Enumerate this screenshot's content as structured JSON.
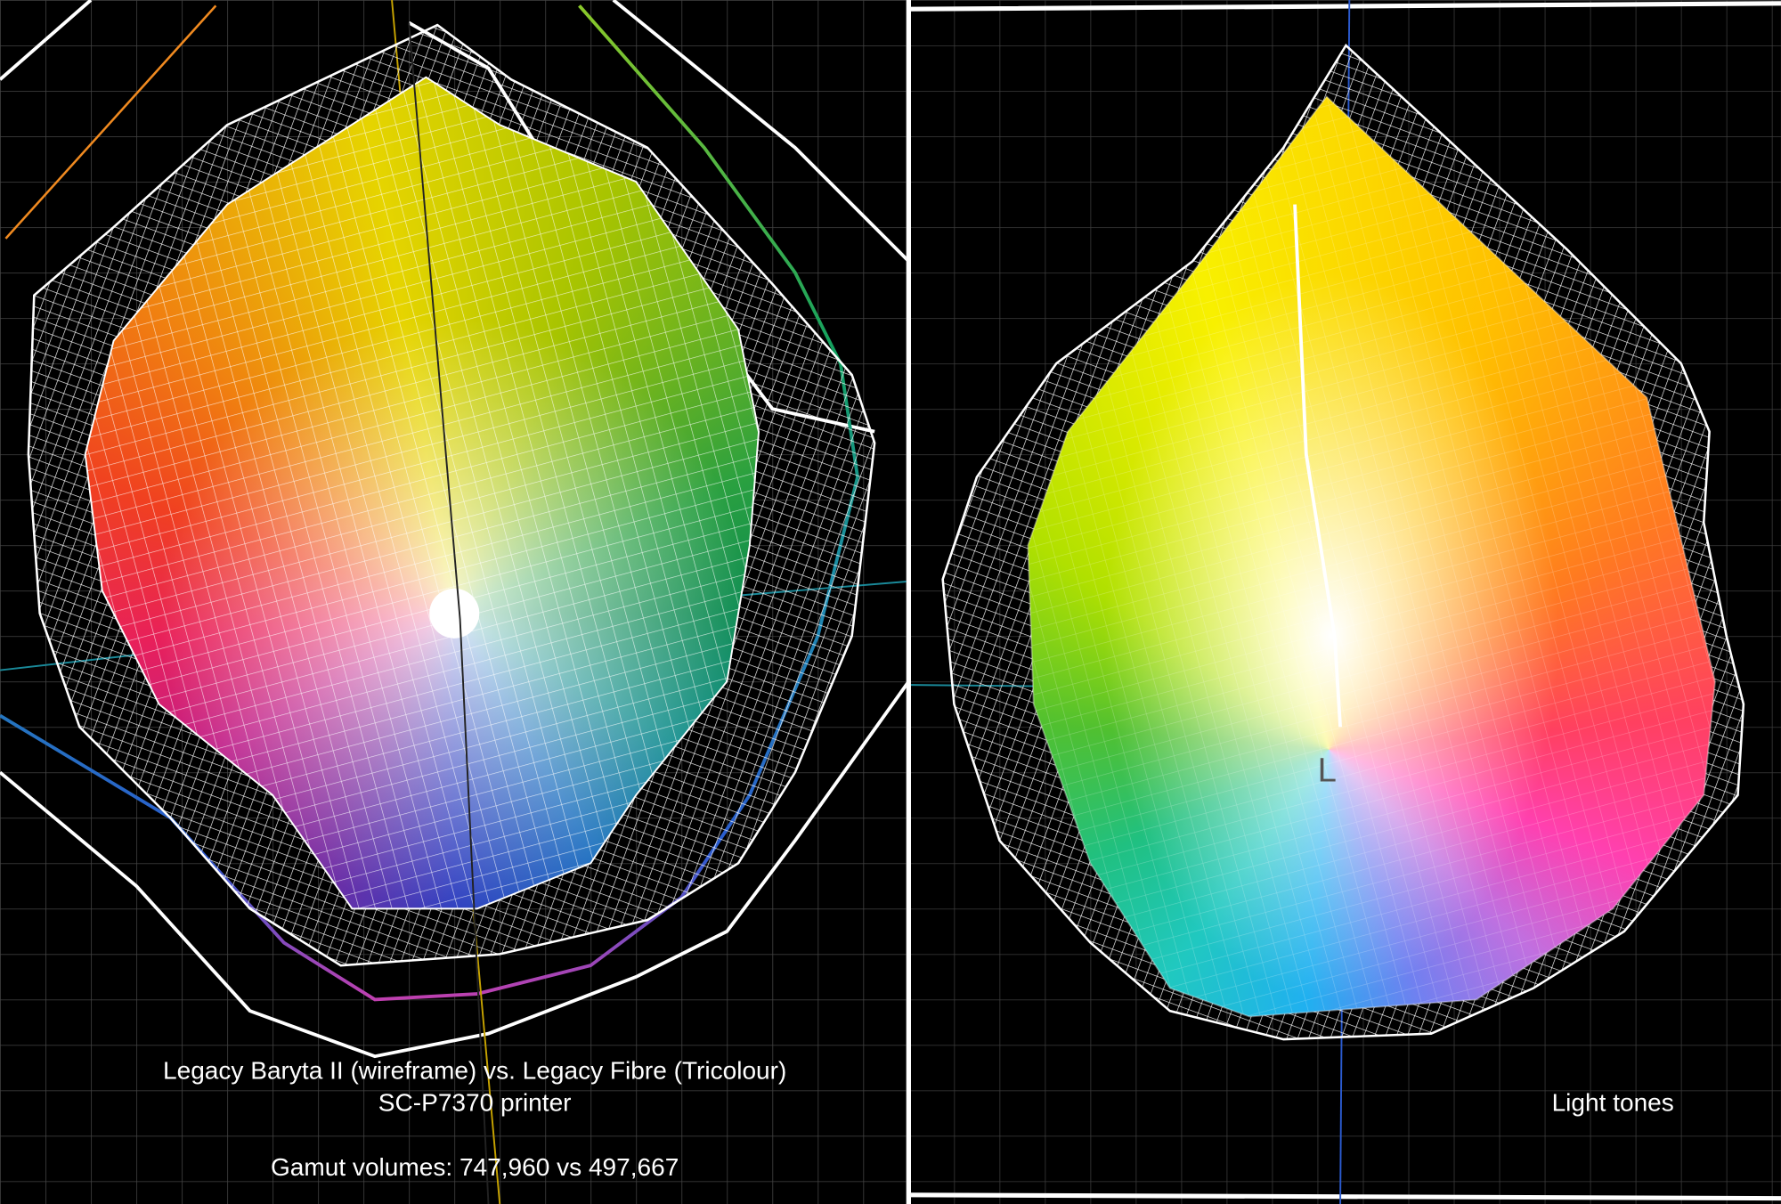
{
  "left_panel": {
    "caption": [
      "Legacy Baryta II (wireframe) vs. Legacy Fibre (Tricolour)",
      "SC-P7370 printer",
      "Gamut volumes: 747,960 vs 497,667"
    ]
  },
  "right_panel": {
    "axis_label": "L",
    "caption": "Light tones"
  }
}
